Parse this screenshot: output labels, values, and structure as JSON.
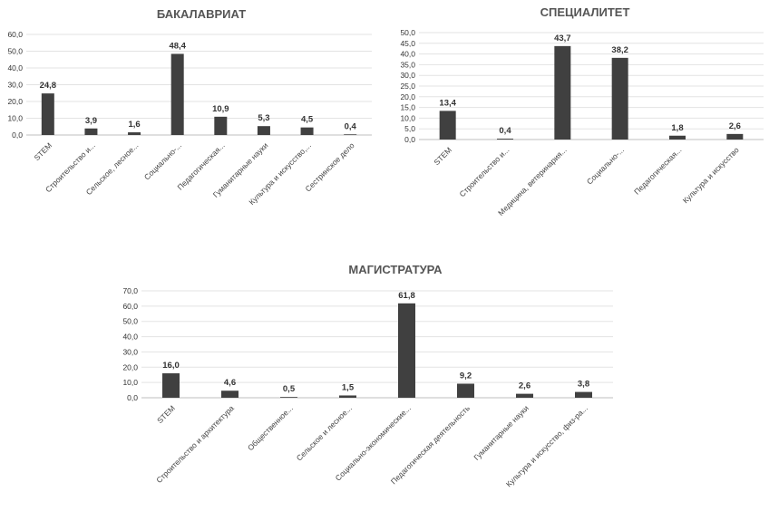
{
  "chart_data": [
    {
      "id": "bachelor",
      "type": "bar",
      "title": "БАКАЛАВРИАТ",
      "categories": [
        "STEM",
        "Строительство и...",
        "Сельское, лесное...",
        "Социально-...",
        "Педагогическая...",
        "Гуманитарные науки",
        "Культура и искусство,...",
        "Сестринское дело"
      ],
      "values": [
        24.8,
        3.9,
        1.6,
        48.4,
        10.9,
        5.3,
        4.5,
        0.4
      ],
      "value_labels": [
        "24,8",
        "3,9",
        "1,6",
        "48,4",
        "10,9",
        "5,3",
        "4,5",
        "0,4"
      ],
      "yticks": [
        "0,0",
        "10,0",
        "20,0",
        "30,0",
        "40,0",
        "50,0",
        "60,0"
      ],
      "ylim": [
        0,
        60
      ],
      "xlabel": "",
      "ylabel": "",
      "grid": true,
      "bar_color": "#404040"
    },
    {
      "id": "specialist",
      "type": "bar",
      "title": "СПЕЦИАЛИТЕТ",
      "categories": [
        "STEM",
        "Строительство и...",
        "Медицина, ветеринария...",
        "Социально-...",
        "Педагогическая...",
        "Культура и искусство"
      ],
      "values": [
        13.4,
        0.4,
        43.7,
        38.2,
        1.8,
        2.6
      ],
      "value_labels": [
        "13,4",
        "0,4",
        "43,7",
        "38,2",
        "1,8",
        "2,6"
      ],
      "yticks": [
        "0,0",
        "5,0",
        "10,0",
        "15,0",
        "20,0",
        "25,0",
        "30,0",
        "35,0",
        "40,0",
        "45,0",
        "50,0"
      ],
      "ylim": [
        0,
        50
      ],
      "xlabel": "",
      "ylabel": "",
      "grid": true,
      "bar_color": "#404040"
    },
    {
      "id": "master",
      "type": "bar",
      "title": "МАГИСТРАТУРА",
      "categories": [
        "STEM",
        "Строительство и архитектура",
        "Общественное...",
        "Сельское и лесное...",
        "Социально-экономические...",
        "Педагогическая деятельность",
        "Гуманитарные науки",
        "Культура и искусство, физ-ра..."
      ],
      "values": [
        16.0,
        4.6,
        0.5,
        1.5,
        61.8,
        9.2,
        2.6,
        3.8
      ],
      "value_labels": [
        "16,0",
        "4,6",
        "0,5",
        "1,5",
        "61,8",
        "9,2",
        "2,6",
        "3,8"
      ],
      "yticks": [
        "0,0",
        "10,0",
        "20,0",
        "30,0",
        "40,0",
        "50,0",
        "60,0",
        "70,0"
      ],
      "ylim": [
        0,
        70
      ],
      "xlabel": "",
      "ylabel": "",
      "grid": true,
      "bar_color": "#404040"
    }
  ]
}
